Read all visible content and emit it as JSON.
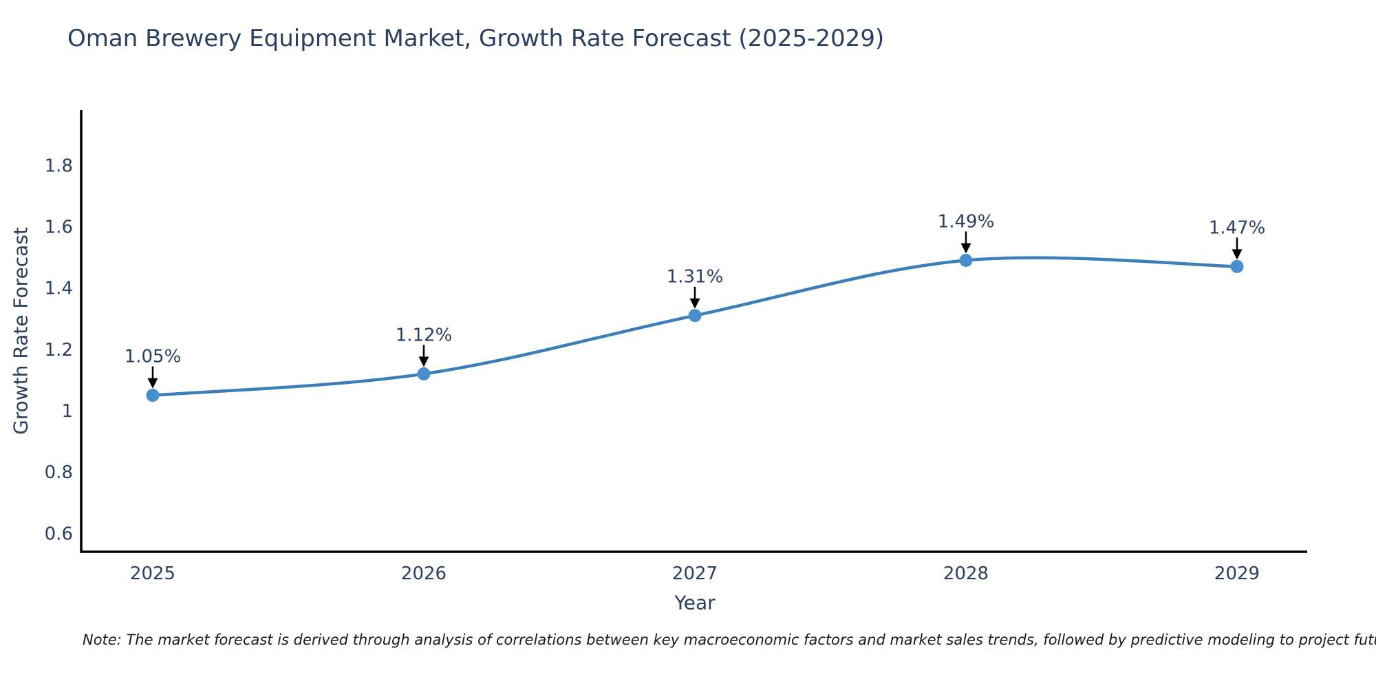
{
  "chart_data": {
    "type": "line",
    "title": "Oman Brewery Equipment Market, Growth Rate Forecast (2025-2029)",
    "xlabel": "Year",
    "ylabel": "Growth Rate Forecast",
    "categories": [
      "2025",
      "2026",
      "2027",
      "2028",
      "2029"
    ],
    "series": [
      {
        "name": "Growth Rate Forecast",
        "values": [
          1.05,
          1.12,
          1.31,
          1.49,
          1.47
        ],
        "point_labels": [
          "1.05%",
          "1.12%",
          "1.31%",
          "1.49%",
          "1.47%"
        ]
      }
    ],
    "y_ticks": [
      0.6,
      0.8,
      1,
      1.2,
      1.4,
      1.6,
      1.8
    ],
    "ylim": [
      0.54,
      1.98
    ],
    "grid": false,
    "legend_position": "none",
    "line_shape": "spline",
    "colors": {
      "line": "#3c7eb9",
      "marker": "#478fcc",
      "axis_line": "#000000",
      "text": "#2a3f5f",
      "annotation_arrow": "#000000"
    }
  },
  "note": {
    "text": "Note: The market forecast is derived through analysis of correlations between key macroeconomic factors and market sales trends, followed by predictive modeling to project future sales"
  }
}
